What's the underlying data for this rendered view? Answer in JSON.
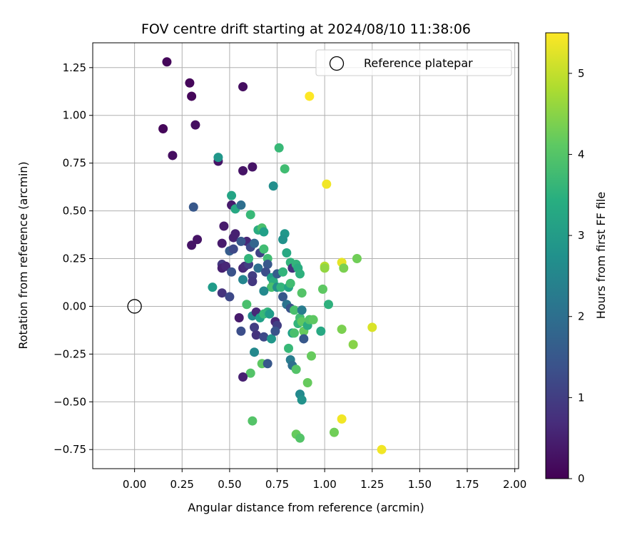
{
  "chart_data": {
    "type": "scatter",
    "title": "FOV centre drift starting at 2024/08/10 11:38:06",
    "xlabel": "Angular distance from reference (arcmin)",
    "ylabel": "Rotation from reference (arcmin)",
    "xlim": [
      -0.22,
      2.02
    ],
    "ylim": [
      -0.85,
      1.38
    ],
    "xticks": [
      0.0,
      0.25,
      0.5,
      0.75,
      1.0,
      1.25,
      1.5,
      1.75,
      2.0
    ],
    "yticks": [
      -0.75,
      -0.5,
      -0.25,
      0.0,
      0.25,
      0.5,
      0.75,
      1.0,
      1.25
    ],
    "x_tick_labels": [
      "0.00",
      "0.25",
      "0.50",
      "0.75",
      "1.00",
      "1.25",
      "1.50",
      "1.75",
      "2.00"
    ],
    "y_tick_labels": [
      "−0.75",
      "−0.50",
      "−0.25",
      "0.00",
      "0.25",
      "0.50",
      "0.75",
      "1.00",
      "1.25"
    ],
    "grid": true,
    "legend_position": "top-right",
    "reference": {
      "label": "Reference platepar",
      "x": 0.0,
      "y": 0.0
    },
    "colorbar": {
      "label": "Hours from first FF file",
      "colormap": "viridis",
      "range": [
        0,
        5.5
      ],
      "ticks": [
        0,
        1,
        2,
        3,
        4,
        5
      ],
      "tick_labels": [
        "0",
        "1",
        "2",
        "3",
        "4",
        "5"
      ]
    },
    "points": [
      {
        "x": 0.17,
        "y": 1.28,
        "c": 0.1
      },
      {
        "x": 0.29,
        "y": 1.17,
        "c": 0.1
      },
      {
        "x": 0.3,
        "y": 1.1,
        "c": 0.1
      },
      {
        "x": 0.57,
        "y": 1.15,
        "c": 0.2
      },
      {
        "x": 0.15,
        "y": 0.93,
        "c": 0.1
      },
      {
        "x": 0.32,
        "y": 0.95,
        "c": 0.2
      },
      {
        "x": 0.2,
        "y": 0.79,
        "c": 0.2
      },
      {
        "x": 0.44,
        "y": 0.76,
        "c": 0.3
      },
      {
        "x": 0.57,
        "y": 0.71,
        "c": 0.3
      },
      {
        "x": 0.62,
        "y": 0.73,
        "c": 0.3
      },
      {
        "x": 0.31,
        "y": 0.52,
        "c": 1.5
      },
      {
        "x": 0.51,
        "y": 0.53,
        "c": 0.4
      },
      {
        "x": 0.47,
        "y": 0.42,
        "c": 0.4
      },
      {
        "x": 0.33,
        "y": 0.35,
        "c": 0.3
      },
      {
        "x": 0.3,
        "y": 0.32,
        "c": 0.3
      },
      {
        "x": 0.46,
        "y": 0.33,
        "c": 0.4
      },
      {
        "x": 0.52,
        "y": 0.36,
        "c": 0.5
      },
      {
        "x": 0.53,
        "y": 0.38,
        "c": 0.5
      },
      {
        "x": 0.5,
        "y": 0.29,
        "c": 1.6
      },
      {
        "x": 0.52,
        "y": 0.3,
        "c": 1.2
      },
      {
        "x": 0.46,
        "y": 0.22,
        "c": 0.9
      },
      {
        "x": 0.46,
        "y": 0.2,
        "c": 0.5
      },
      {
        "x": 0.48,
        "y": 0.21,
        "c": 0.6
      },
      {
        "x": 0.51,
        "y": 0.18,
        "c": 1.4
      },
      {
        "x": 0.46,
        "y": 0.07,
        "c": 0.8
      },
      {
        "x": 0.5,
        "y": 0.05,
        "c": 1.2
      },
      {
        "x": 0.57,
        "y": 0.2,
        "c": 0.6
      },
      {
        "x": 0.58,
        "y": 0.21,
        "c": 0.7
      },
      {
        "x": 0.6,
        "y": 0.22,
        "c": 1.0
      },
      {
        "x": 0.59,
        "y": 0.34,
        "c": 0.6
      },
      {
        "x": 0.61,
        "y": 0.31,
        "c": 1.2
      },
      {
        "x": 0.63,
        "y": 0.33,
        "c": 1.8
      },
      {
        "x": 0.62,
        "y": 0.16,
        "c": 1.0
      },
      {
        "x": 0.62,
        "y": 0.13,
        "c": 0.9
      },
      {
        "x": 0.57,
        "y": 0.14,
        "c": 2.5
      },
      {
        "x": 0.6,
        "y": 0.25,
        "c": 3.6
      },
      {
        "x": 0.56,
        "y": 0.34,
        "c": 1.5
      },
      {
        "x": 0.51,
        "y": 0.58,
        "c": 3.2
      },
      {
        "x": 0.53,
        "y": 0.51,
        "c": 3.3
      },
      {
        "x": 0.44,
        "y": 0.78,
        "c": 2.9
      },
      {
        "x": 0.56,
        "y": 0.53,
        "c": 2.0
      },
      {
        "x": 0.61,
        "y": 0.48,
        "c": 3.7
      },
      {
        "x": 0.41,
        "y": 0.1,
        "c": 3.0
      },
      {
        "x": 0.65,
        "y": 0.4,
        "c": 3.4
      },
      {
        "x": 0.67,
        "y": 0.41,
        "c": 3.9
      },
      {
        "x": 0.68,
        "y": 0.39,
        "c": 3.1
      },
      {
        "x": 0.66,
        "y": 0.28,
        "c": 1.1
      },
      {
        "x": 0.68,
        "y": 0.3,
        "c": 3.8
      },
      {
        "x": 0.65,
        "y": 0.2,
        "c": 2.0
      },
      {
        "x": 0.7,
        "y": 0.25,
        "c": 3.8
      },
      {
        "x": 0.7,
        "y": 0.22,
        "c": 1.5
      },
      {
        "x": 0.69,
        "y": 0.18,
        "c": 1.3
      },
      {
        "x": 0.72,
        "y": 0.15,
        "c": 3.1
      },
      {
        "x": 0.73,
        "y": 0.13,
        "c": 3.4
      },
      {
        "x": 0.75,
        "y": 0.17,
        "c": 1.6
      },
      {
        "x": 0.72,
        "y": 0.1,
        "c": 3.9
      },
      {
        "x": 0.68,
        "y": 0.08,
        "c": 2.6
      },
      {
        "x": 0.75,
        "y": 0.1,
        "c": 2.7
      },
      {
        "x": 0.77,
        "y": 0.1,
        "c": 3.6
      },
      {
        "x": 0.73,
        "y": 0.63,
        "c": 2.7
      },
      {
        "x": 0.76,
        "y": 0.83,
        "c": 3.7
      },
      {
        "x": 0.79,
        "y": 0.72,
        "c": 3.8
      },
      {
        "x": 0.79,
        "y": 0.38,
        "c": 2.9
      },
      {
        "x": 0.78,
        "y": 0.35,
        "c": 2.8
      },
      {
        "x": 0.8,
        "y": 0.28,
        "c": 3.3
      },
      {
        "x": 0.82,
        "y": 0.23,
        "c": 3.6
      },
      {
        "x": 0.83,
        "y": 0.2,
        "c": 0.8
      },
      {
        "x": 0.85,
        "y": 0.22,
        "c": 3.6
      },
      {
        "x": 0.86,
        "y": 0.2,
        "c": 3.4
      },
      {
        "x": 0.87,
        "y": 0.17,
        "c": 3.5
      },
      {
        "x": 0.78,
        "y": 0.18,
        "c": 3.6
      },
      {
        "x": 0.81,
        "y": 0.1,
        "c": 3.2
      },
      {
        "x": 0.82,
        "y": 0.12,
        "c": 3.8
      },
      {
        "x": 0.78,
        "y": 0.05,
        "c": 1.5
      },
      {
        "x": 0.8,
        "y": 0.01,
        "c": 2.1
      },
      {
        "x": 0.82,
        "y": -0.01,
        "c": 1.4
      },
      {
        "x": 0.84,
        "y": -0.02,
        "c": 3.9
      },
      {
        "x": 0.88,
        "y": 0.07,
        "c": 4.0
      },
      {
        "x": 0.59,
        "y": 0.01,
        "c": 3.9
      },
      {
        "x": 0.55,
        "y": -0.06,
        "c": 0.4
      },
      {
        "x": 0.62,
        "y": -0.05,
        "c": 2.6
      },
      {
        "x": 0.64,
        "y": -0.03,
        "c": 0.6
      },
      {
        "x": 0.66,
        "y": -0.06,
        "c": 3.1
      },
      {
        "x": 0.68,
        "y": -0.04,
        "c": 3.7
      },
      {
        "x": 0.7,
        "y": -0.03,
        "c": 3.6
      },
      {
        "x": 0.71,
        "y": -0.04,
        "c": 3.0
      },
      {
        "x": 0.74,
        "y": -0.08,
        "c": 0.6
      },
      {
        "x": 0.75,
        "y": -0.1,
        "c": 1.0
      },
      {
        "x": 0.63,
        "y": -0.11,
        "c": 1.0
      },
      {
        "x": 0.56,
        "y": -0.13,
        "c": 1.3
      },
      {
        "x": 0.64,
        "y": -0.15,
        "c": 0.8
      },
      {
        "x": 0.68,
        "y": -0.16,
        "c": 1.2
      },
      {
        "x": 0.72,
        "y": -0.17,
        "c": 2.9
      },
      {
        "x": 0.74,
        "y": -0.13,
        "c": 1.4
      },
      {
        "x": 0.63,
        "y": -0.24,
        "c": 2.6
      },
      {
        "x": 0.67,
        "y": -0.3,
        "c": 4.1
      },
      {
        "x": 0.7,
        "y": -0.3,
        "c": 1.5
      },
      {
        "x": 0.61,
        "y": -0.35,
        "c": 4.0
      },
      {
        "x": 0.57,
        "y": -0.37,
        "c": 0.5
      },
      {
        "x": 0.62,
        "y": -0.6,
        "c": 4.0
      },
      {
        "x": 0.83,
        "y": -0.14,
        "c": 3.1
      },
      {
        "x": 0.84,
        "y": -0.14,
        "c": 3.9
      },
      {
        "x": 0.86,
        "y": -0.09,
        "c": 3.6
      },
      {
        "x": 0.87,
        "y": -0.06,
        "c": 3.8
      },
      {
        "x": 0.88,
        "y": -0.02,
        "c": 2.3
      },
      {
        "x": 0.88,
        "y": -0.08,
        "c": 4.1
      },
      {
        "x": 0.89,
        "y": -0.13,
        "c": 4.2
      },
      {
        "x": 0.89,
        "y": -0.17,
        "c": 1.5
      },
      {
        "x": 0.91,
        "y": -0.1,
        "c": 3.4
      },
      {
        "x": 0.92,
        "y": -0.07,
        "c": 4.0
      },
      {
        "x": 0.94,
        "y": -0.07,
        "c": 4.1
      },
      {
        "x": 0.81,
        "y": -0.22,
        "c": 3.7
      },
      {
        "x": 0.82,
        "y": -0.28,
        "c": 2.3
      },
      {
        "x": 0.83,
        "y": -0.31,
        "c": 2.0
      },
      {
        "x": 0.85,
        "y": -0.33,
        "c": 4.0
      },
      {
        "x": 0.93,
        "y": -0.26,
        "c": 4.2
      },
      {
        "x": 0.91,
        "y": -0.4,
        "c": 4.2
      },
      {
        "x": 0.87,
        "y": -0.46,
        "c": 2.6
      },
      {
        "x": 0.88,
        "y": -0.49,
        "c": 2.8
      },
      {
        "x": 0.85,
        "y": -0.67,
        "c": 4.2
      },
      {
        "x": 0.87,
        "y": -0.69,
        "c": 4.0
      },
      {
        "x": 0.98,
        "y": -0.13,
        "c": 3.3
      },
      {
        "x": 0.99,
        "y": 0.09,
        "c": 4.1
      },
      {
        "x": 1.0,
        "y": 0.21,
        "c": 4.9
      },
      {
        "x": 1.0,
        "y": 0.2,
        "c": 4.6
      },
      {
        "x": 1.02,
        "y": 0.01,
        "c": 3.5
      },
      {
        "x": 1.09,
        "y": 0.23,
        "c": 5.3
      },
      {
        "x": 1.1,
        "y": 0.2,
        "c": 4.4
      },
      {
        "x": 1.17,
        "y": 0.25,
        "c": 4.3
      },
      {
        "x": 1.09,
        "y": -0.12,
        "c": 4.4
      },
      {
        "x": 1.15,
        "y": -0.2,
        "c": 4.5
      },
      {
        "x": 1.05,
        "y": -0.66,
        "c": 4.3
      },
      {
        "x": 1.25,
        "y": -0.11,
        "c": 5.2
      },
      {
        "x": 1.09,
        "y": -0.59,
        "c": 5.4
      },
      {
        "x": 1.3,
        "y": -0.75,
        "c": 5.4
      },
      {
        "x": 0.92,
        "y": 1.1,
        "c": 5.5
      },
      {
        "x": 1.01,
        "y": 0.64,
        "c": 5.4
      }
    ]
  }
}
